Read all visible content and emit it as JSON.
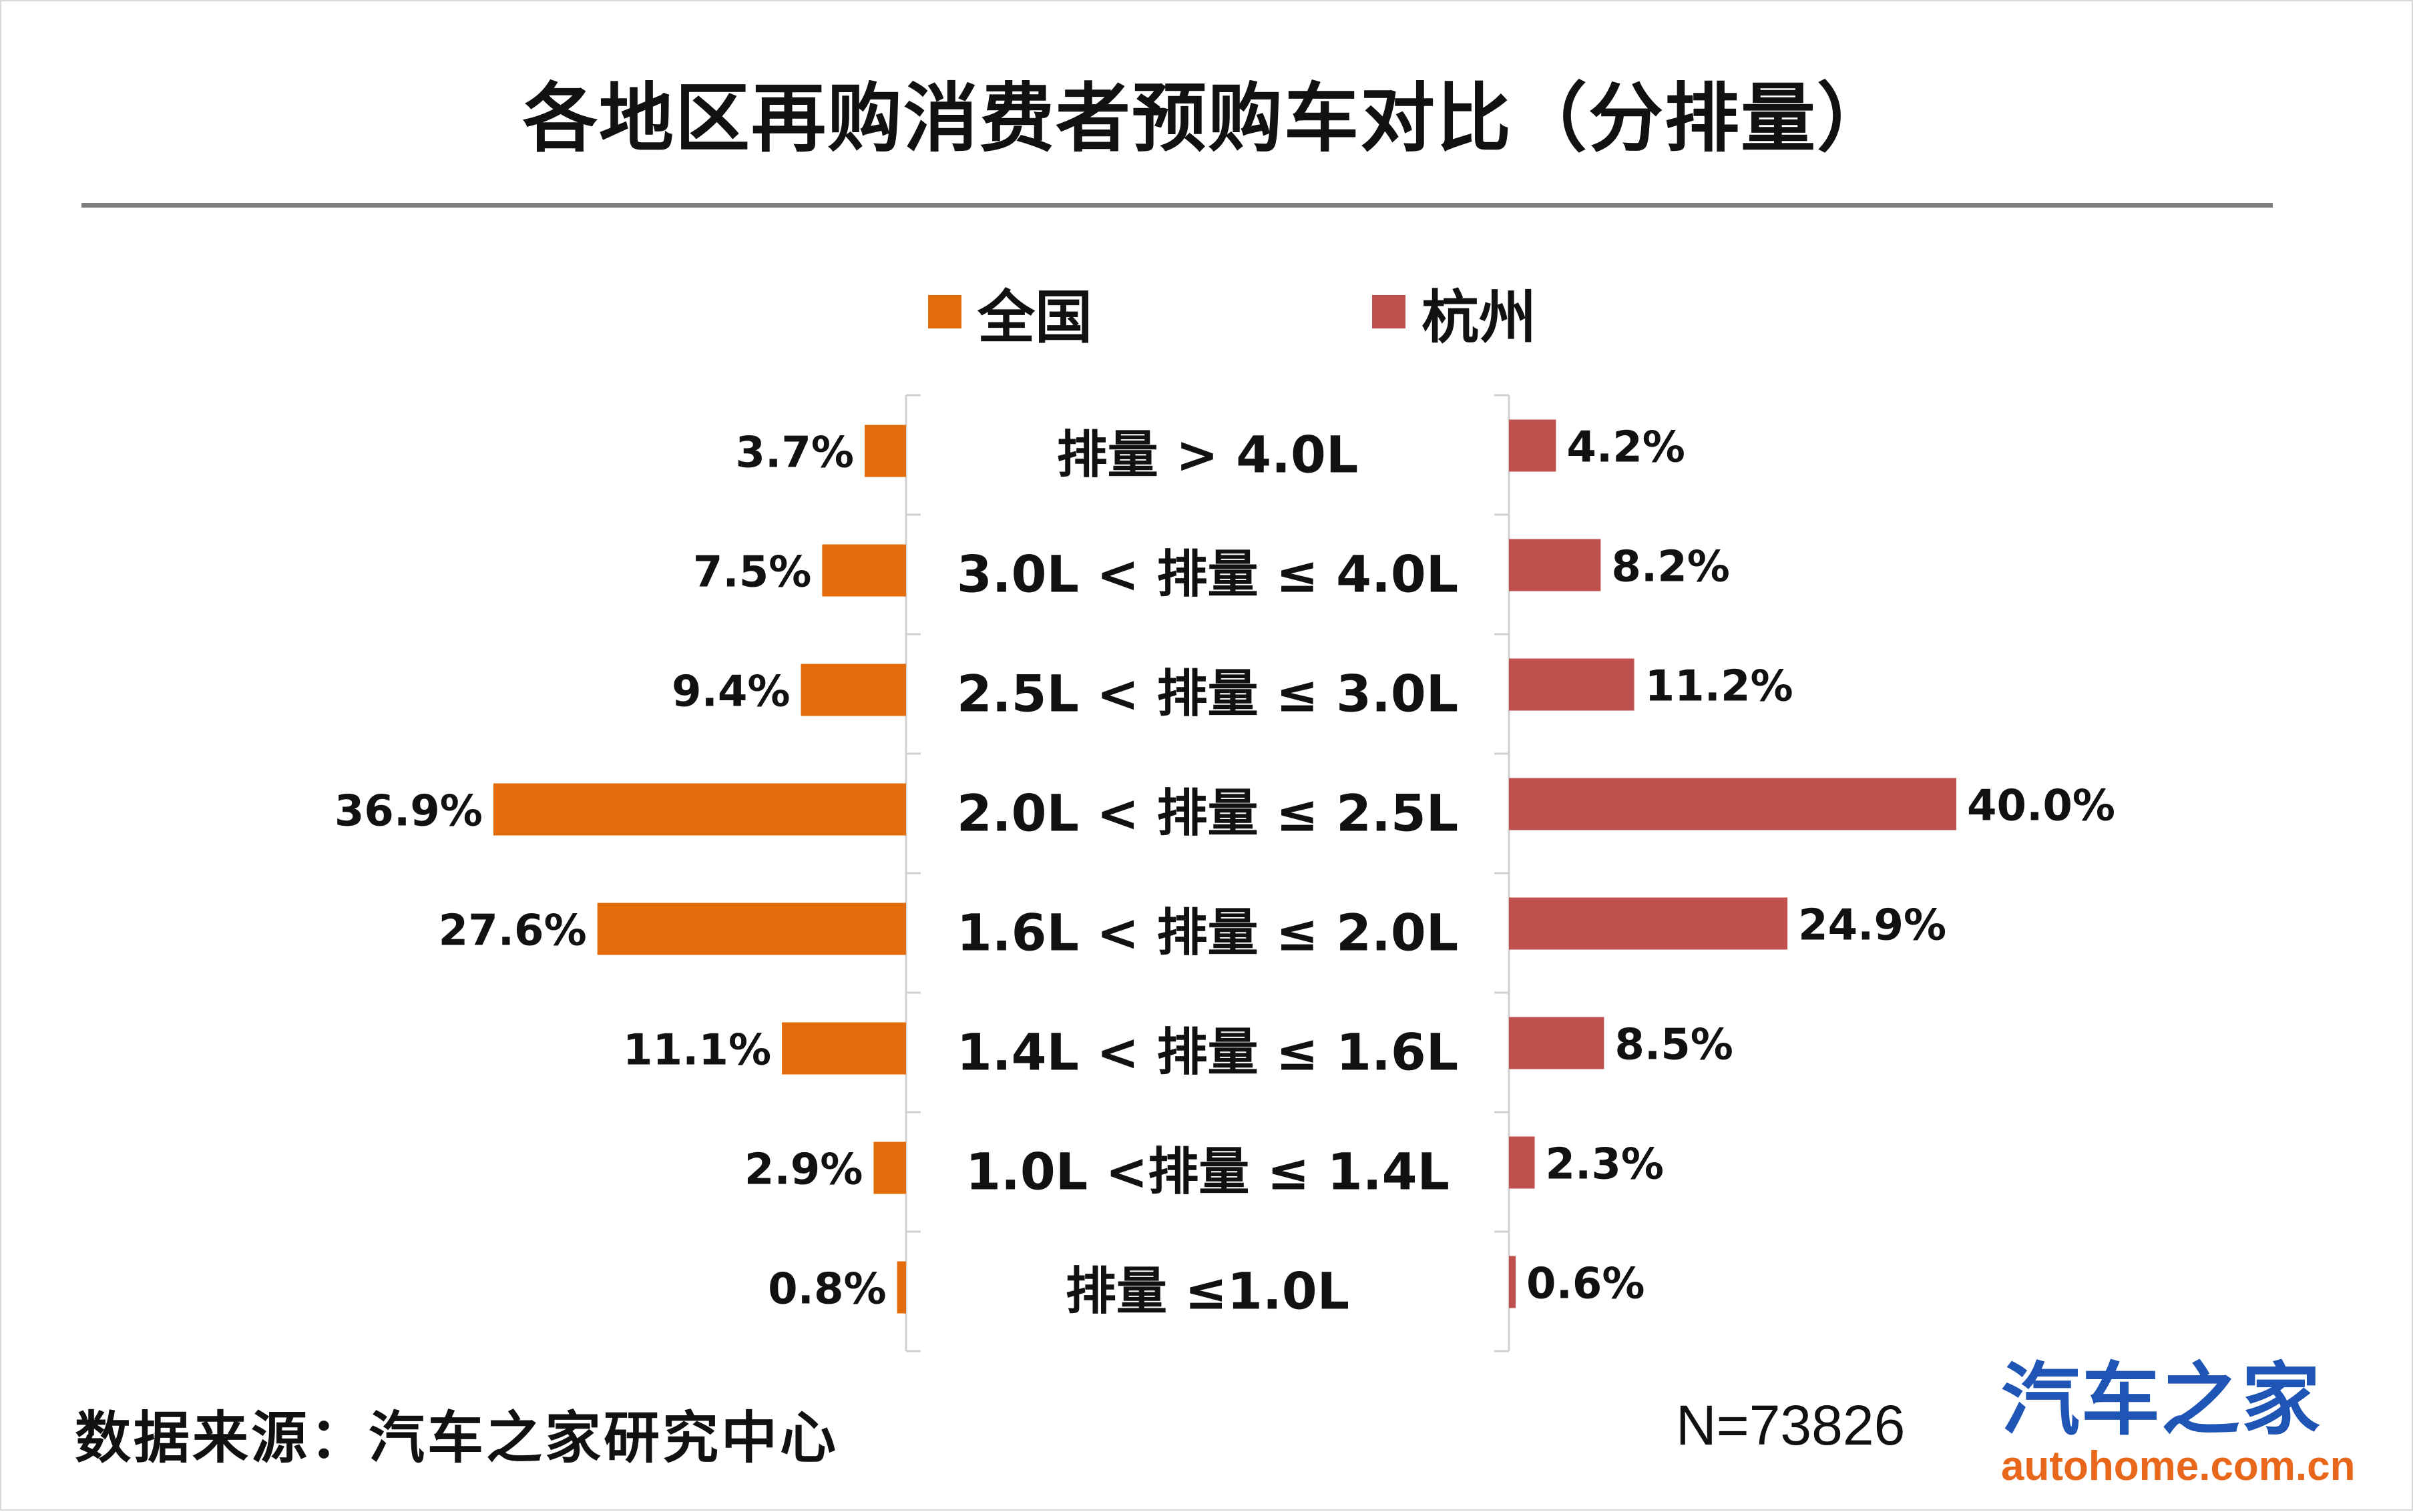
{
  "title": "各地区再购消费者预购车对比（分排量）",
  "legend": [
    {
      "name": "全国",
      "color": "#e36c0a"
    },
    {
      "name": "杭州",
      "color": "#c0504d"
    }
  ],
  "chart_data": {
    "type": "bar",
    "orientation": "horizontal-butterfly",
    "categories": [
      "排量 > 4.0L",
      "3.0L < 排量 ≤ 4.0L",
      "2.5L < 排量 ≤ 3.0L",
      "2.0L < 排量 ≤ 2.5L",
      "1.6L < 排量 ≤ 2.0L",
      "1.4L < 排量 ≤ 1.6L",
      "1.0L <排量 ≤ 1.4L",
      "排量 ≤1.0L"
    ],
    "series": [
      {
        "name": "全国",
        "values": [
          3.7,
          7.5,
          9.4,
          36.9,
          27.6,
          11.1,
          2.9,
          0.8
        ],
        "labels": [
          "3.7%",
          "7.5%",
          "9.4%",
          "36.9%",
          "27.6%",
          "11.1%",
          "2.9%",
          "0.8%"
        ],
        "color": "#e36c0a"
      },
      {
        "name": "杭州",
        "values": [
          4.2,
          8.2,
          11.2,
          40.0,
          24.9,
          8.5,
          2.3,
          0.6
        ],
        "labels": [
          "4.2%",
          "8.2%",
          "11.2%",
          "40.0%",
          "24.9%",
          "8.5%",
          "2.3%",
          "0.6%"
        ],
        "color": "#c0504d"
      }
    ],
    "unit": "%",
    "xlim": [
      0,
      40
    ]
  },
  "footer": {
    "source": "数据来源：汽车之家研究中心",
    "sample": "N=73826"
  },
  "logo": {
    "name": "汽车之家",
    "url_text": "autohome.com.cn"
  }
}
